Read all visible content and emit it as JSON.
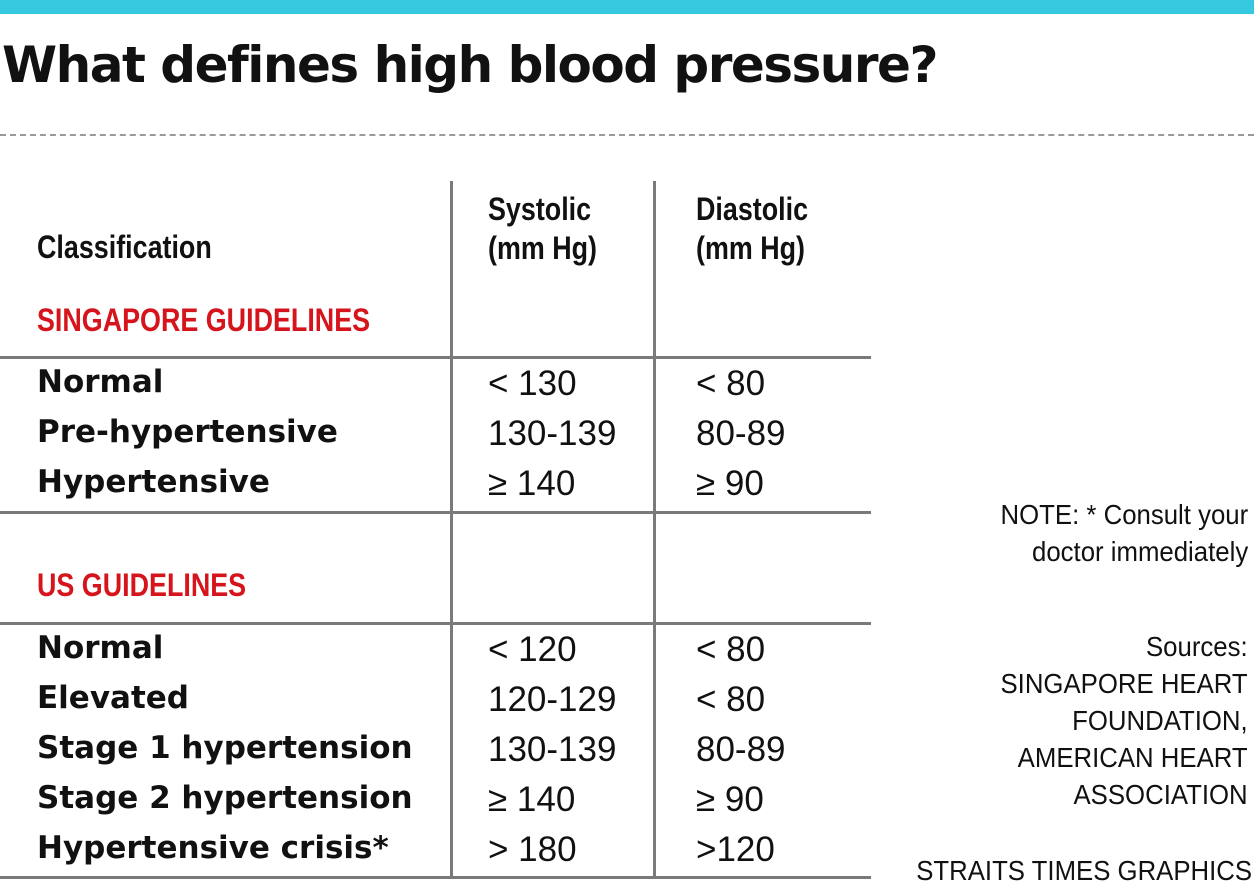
{
  "title": "What defines high blood pressure?",
  "accent_color": "#35c8df",
  "section_color": "#d6141c",
  "chart_data": {
    "type": "table",
    "title": "What defines high blood pressure?",
    "columns": [
      "Classification",
      "Systolic (mm Hg)",
      "Diastolic (mm Hg)"
    ],
    "column_lines": [
      [
        "Classification"
      ],
      [
        "Systolic",
        "(mm Hg)"
      ],
      [
        "Diastolic",
        "(mm Hg)"
      ]
    ],
    "sections": [
      {
        "name": "SINGAPORE GUIDELINES",
        "rows": [
          [
            "Normal",
            "< 130",
            "< 80"
          ],
          [
            "Pre-hypertensive",
            "130-139",
            "80-89"
          ],
          [
            "Hypertensive",
            "≥ 140",
            "≥ 90"
          ]
        ]
      },
      {
        "name": "US GUIDELINES",
        "rows": [
          [
            "Normal",
            "< 120",
            "< 80"
          ],
          [
            "Elevated",
            "120-129",
            "< 80"
          ],
          [
            "Stage 1 hypertension",
            "130-139",
            "80-89"
          ],
          [
            "Stage 2 hypertension",
            "≥ 140",
            "≥ 90"
          ],
          [
            "Hypertensive crisis*",
            "> 180",
            ">120"
          ]
        ]
      }
    ]
  },
  "note": [
    "NOTE: * Consult your",
    "doctor immediately"
  ],
  "sources": [
    "Sources:",
    "SINGAPORE HEART",
    "FOUNDATION,",
    "AMERICAN HEART",
    "ASSOCIATION"
  ],
  "credit": "STRAITS TIMES GRAPHICS"
}
